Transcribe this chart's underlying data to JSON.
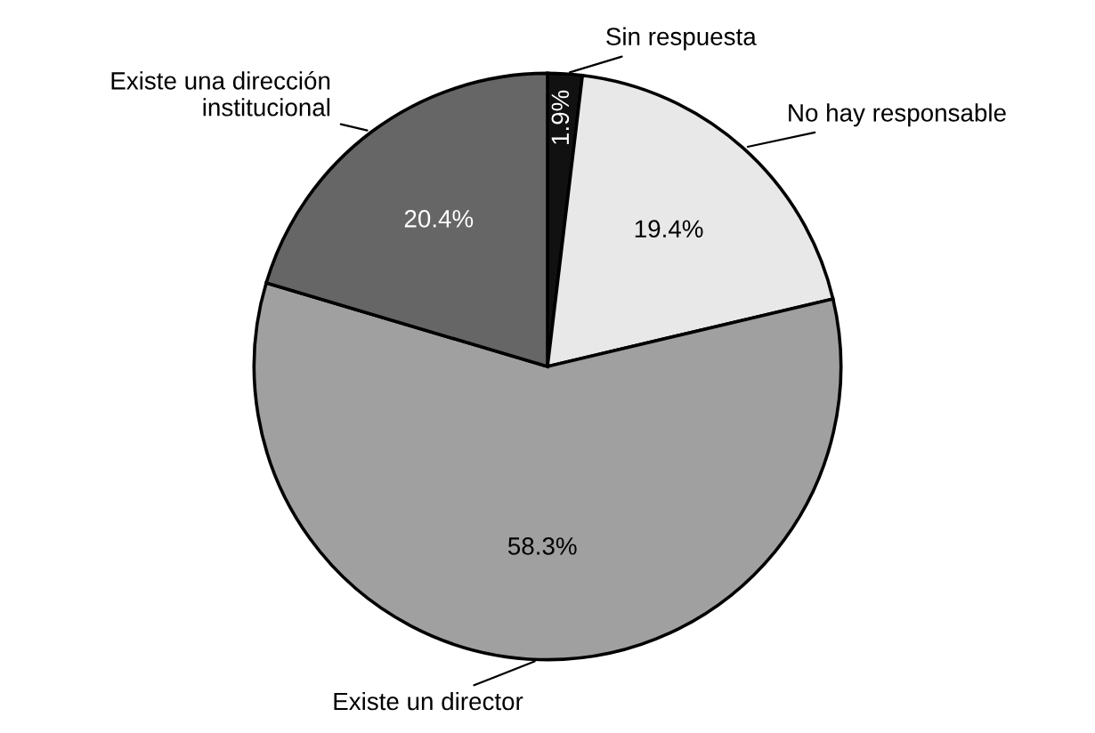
{
  "chart_data": {
    "type": "pie",
    "categories": [
      "Sin respuesta",
      "No hay responsable",
      "Existe un director",
      "Existe una dirección institucional"
    ],
    "values": [
      1.9,
      19.4,
      58.3,
      20.4
    ],
    "colors": [
      "#111111",
      "#e8e8e8",
      "#a0a0a0",
      "#666666"
    ],
    "value_labels": [
      "1.9%",
      "19.4%",
      "58.3%",
      "20.4%"
    ],
    "legend": false
  }
}
